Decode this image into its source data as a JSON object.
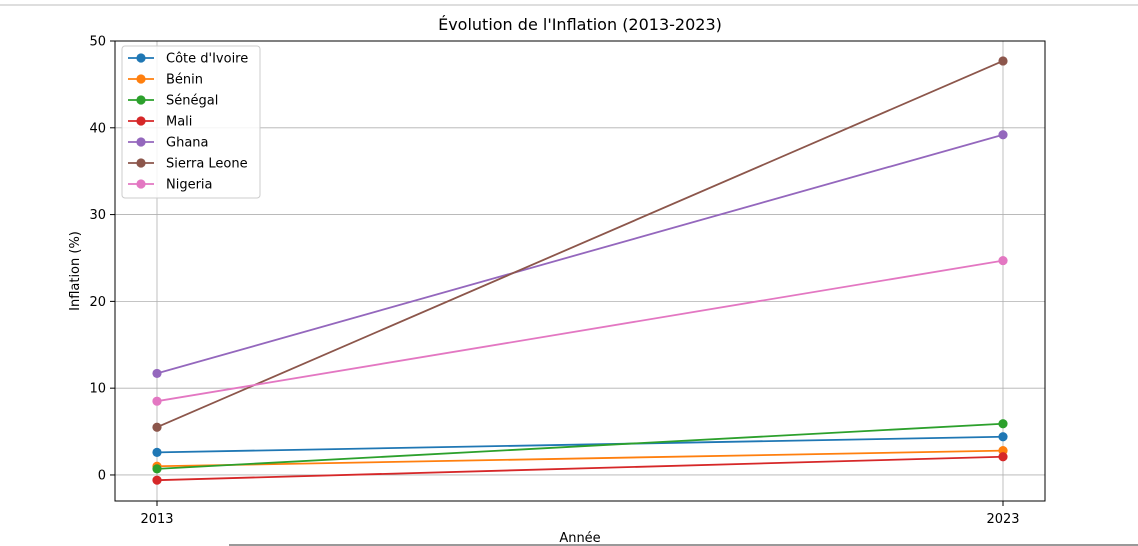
{
  "chart_data": {
    "type": "line",
    "title": "Évolution de l'Inflation (2013-2023)",
    "xlabel": "Année",
    "ylabel": "Inflation (%)",
    "x": [
      2013,
      2023
    ],
    "xticks": [
      "2013",
      "2023"
    ],
    "ylim": [
      -3,
      50
    ],
    "yticks": [
      0,
      10,
      20,
      30,
      40,
      50
    ],
    "grid": true,
    "legend_position": "top-left",
    "series": [
      {
        "name": "Côte d'Ivoire",
        "color": "#1f77b4",
        "values": [
          2.6,
          4.4
        ]
      },
      {
        "name": "Bénin",
        "color": "#ff7f0e",
        "values": [
          1.0,
          2.8
        ]
      },
      {
        "name": "Sénégal",
        "color": "#2ca02c",
        "values": [
          0.7,
          5.9
        ]
      },
      {
        "name": "Mali",
        "color": "#d62728",
        "values": [
          -0.6,
          2.1
        ]
      },
      {
        "name": "Ghana",
        "color": "#9467bd",
        "values": [
          11.7,
          39.2
        ]
      },
      {
        "name": "Sierra Leone",
        "color": "#8c564b",
        "values": [
          5.5,
          47.7
        ]
      },
      {
        "name": "Nigeria",
        "color": "#e377c2",
        "values": [
          8.5,
          24.7
        ]
      }
    ]
  }
}
